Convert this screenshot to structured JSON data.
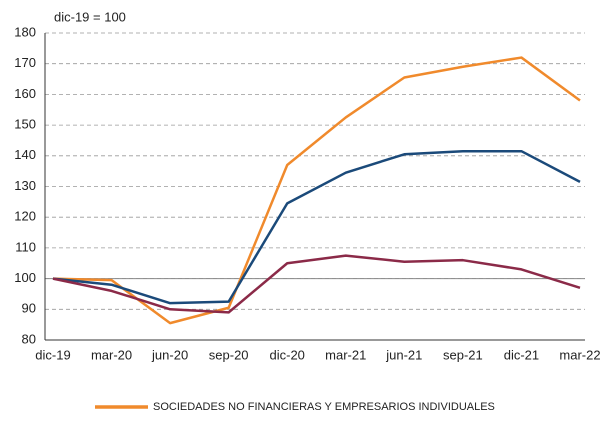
{
  "chart_data": {
    "type": "line",
    "subtitle": "dic-19 = 100",
    "categories": [
      "dic-19",
      "mar-20",
      "jun-20",
      "sep-20",
      "dic-20",
      "mar-21",
      "jun-21",
      "sep-21",
      "dic-21",
      "mar-22"
    ],
    "series": [
      {
        "name": "SOCIEDADES NO FINANCIERAS Y EMPRESARIOS INDIVIDUALES",
        "color": "#f08a2c",
        "values": [
          100,
          99.5,
          85.5,
          90.5,
          137,
          152.5,
          165.5,
          169,
          172,
          158
        ]
      },
      {
        "color": "#1b4a7a",
        "values": [
          100,
          98,
          92,
          92.5,
          124.5,
          134.5,
          140.5,
          141.5,
          141.5,
          131.5
        ]
      },
      {
        "color": "#8b2a48",
        "values": [
          100,
          96,
          90,
          89,
          105,
          107.5,
          105.5,
          106,
          103,
          97
        ]
      }
    ],
    "ylim": [
      80,
      180
    ],
    "yticks": [
      80,
      90,
      100,
      110,
      120,
      130,
      140,
      150,
      160,
      170,
      180
    ],
    "grid": true,
    "reference_line": 100,
    "legend": "bottom"
  }
}
